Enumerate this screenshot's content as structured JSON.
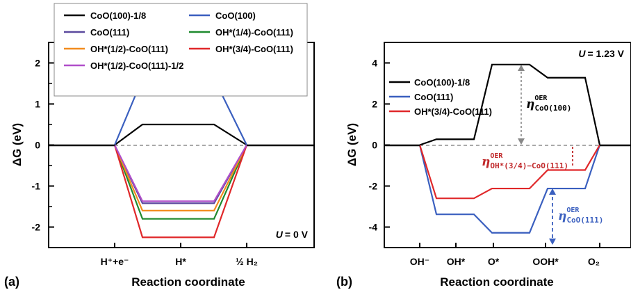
{
  "chart_data": [
    {
      "type": "line",
      "panel_label": "(a)",
      "xlabel": "Reaction coordinate",
      "ylabel": "ΔG (eV)",
      "ylim": [
        -2.5,
        2.5
      ],
      "yticks": [
        -2,
        -1,
        0,
        1,
        2
      ],
      "ytick_labels": [
        "-2",
        "-1",
        "0",
        "1",
        "2"
      ],
      "categories": [
        "H⁺+e⁻",
        "H*",
        "½ H₂"
      ],
      "condition_text": "= 0 V",
      "condition_symbol": "U",
      "series": [
        {
          "name": "CoO(100)-1/8",
          "color": "#000000",
          "values": [
            0,
            0.5,
            0
          ]
        },
        {
          "name": "CoO(100)",
          "color": "#3a5fbf",
          "values": [
            0,
            1.62,
            0
          ]
        },
        {
          "name": "CoO(111)",
          "color": "#5b4a9e",
          "values": [
            0,
            -1.42,
            0
          ]
        },
        {
          "name": "OH*(1/4)-CoO(111)",
          "color": "#1f8a2e",
          "values": [
            0,
            -1.8,
            0
          ]
        },
        {
          "name": "OH*(1/2)-CoO(111)",
          "color": "#f28c1e",
          "values": [
            0,
            -1.6,
            0
          ]
        },
        {
          "name": "OH*(3/4)-CoO(111)",
          "color": "#e0282a",
          "values": [
            0,
            -2.25,
            0
          ]
        },
        {
          "name": "OH*(1/2)-CoO(111)-1/2",
          "color": "#b04ec9",
          "values": [
            0,
            -1.37,
            0
          ]
        }
      ]
    },
    {
      "type": "line",
      "panel_label": "(b)",
      "xlabel": "Reaction coordinate",
      "ylabel": "ΔG (eV)",
      "ylim": [
        -5,
        5
      ],
      "yticks": [
        -4,
        -2,
        0,
        2,
        4
      ],
      "ytick_labels": [
        "-4",
        "-2",
        "0",
        "2",
        "4"
      ],
      "categories": [
        "OH⁻",
        "OH*",
        "O*",
        "OOH*",
        "O₂"
      ],
      "condition_text": "= 1.23 V",
      "condition_symbol": "U",
      "series": [
        {
          "name": "CoO(100)-1/8",
          "color": "#000000",
          "values": [
            0,
            0.28,
            3.92,
            3.28,
            0
          ]
        },
        {
          "name": "CoO(111)",
          "color": "#3a5fbf",
          "values": [
            0,
            -3.38,
            -4.28,
            -2.12,
            0
          ]
        },
        {
          "name": "OH*(3/4)-CoO(111)",
          "color": "#e0282a",
          "values": [
            0,
            -2.6,
            -2.12,
            -1.22,
            0
          ]
        }
      ],
      "annotations": [
        {
          "base": "η",
          "sup": "OER",
          "sub": "CoO(100)",
          "color": "#000000"
        },
        {
          "base": "η",
          "sup": "OER",
          "sub": "OH*(3/4)−CoO(111)",
          "color": "#c0282a"
        },
        {
          "base": "η",
          "sup": "OER",
          "sub": "CoO(111)",
          "color": "#3a5fbf"
        }
      ]
    }
  ]
}
